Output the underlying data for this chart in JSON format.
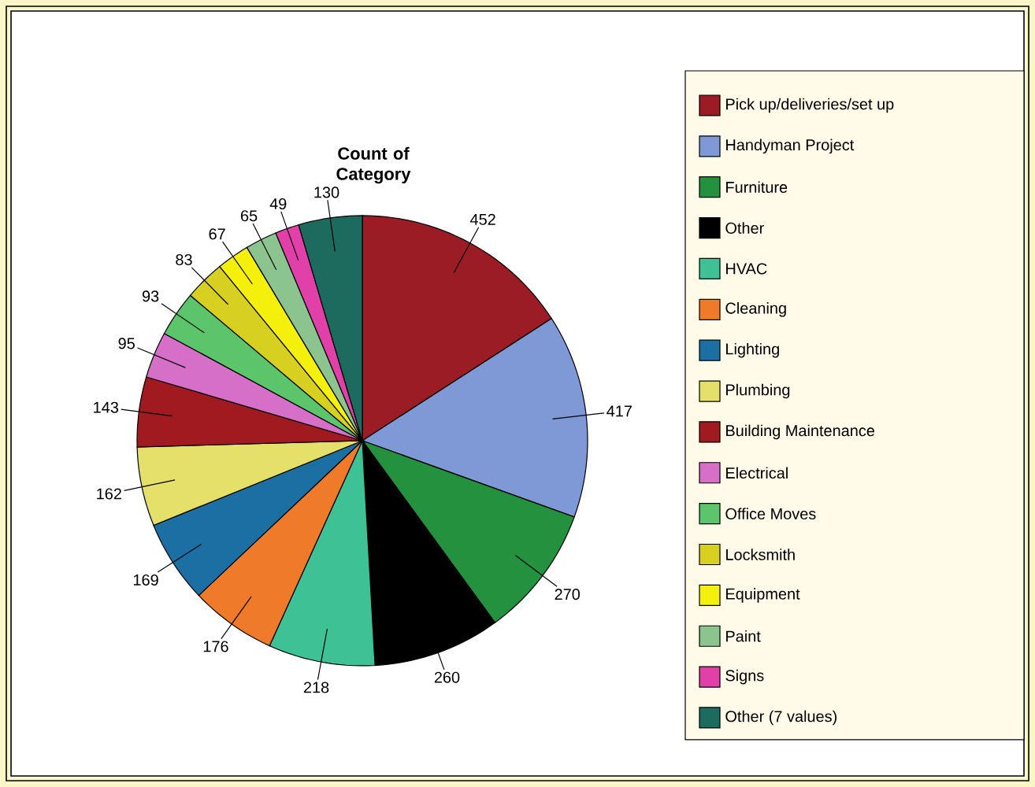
{
  "chart_data": {
    "type": "pie",
    "title": "Count of Category",
    "categories": [
      "Pick up/deliveries/set up",
      "Handyman Project",
      "Furniture",
      "Other",
      "HVAC",
      "Cleaning",
      "Lighting",
      "Plumbing",
      "Building Maintenance",
      "Electrical",
      "Office Moves",
      "Locksmith",
      "Equipment",
      "Paint",
      "Signs",
      "Other (7 values)"
    ],
    "values": [
      452,
      417,
      270,
      260,
      218,
      176,
      169,
      162,
      143,
      95,
      93,
      83,
      67,
      65,
      49,
      130
    ],
    "colors": [
      "#9b1c24",
      "#7f99d6",
      "#23913d",
      "#000000",
      "#3fc196",
      "#ee7a2a",
      "#1c6fa3",
      "#e4e06a",
      "#a01a1f",
      "#d56fc8",
      "#5cc46a",
      "#d8d020",
      "#f5ef0c",
      "#8cc490",
      "#e040a8",
      "#1d6b5e"
    ],
    "data_labels": true,
    "legend": "right"
  }
}
